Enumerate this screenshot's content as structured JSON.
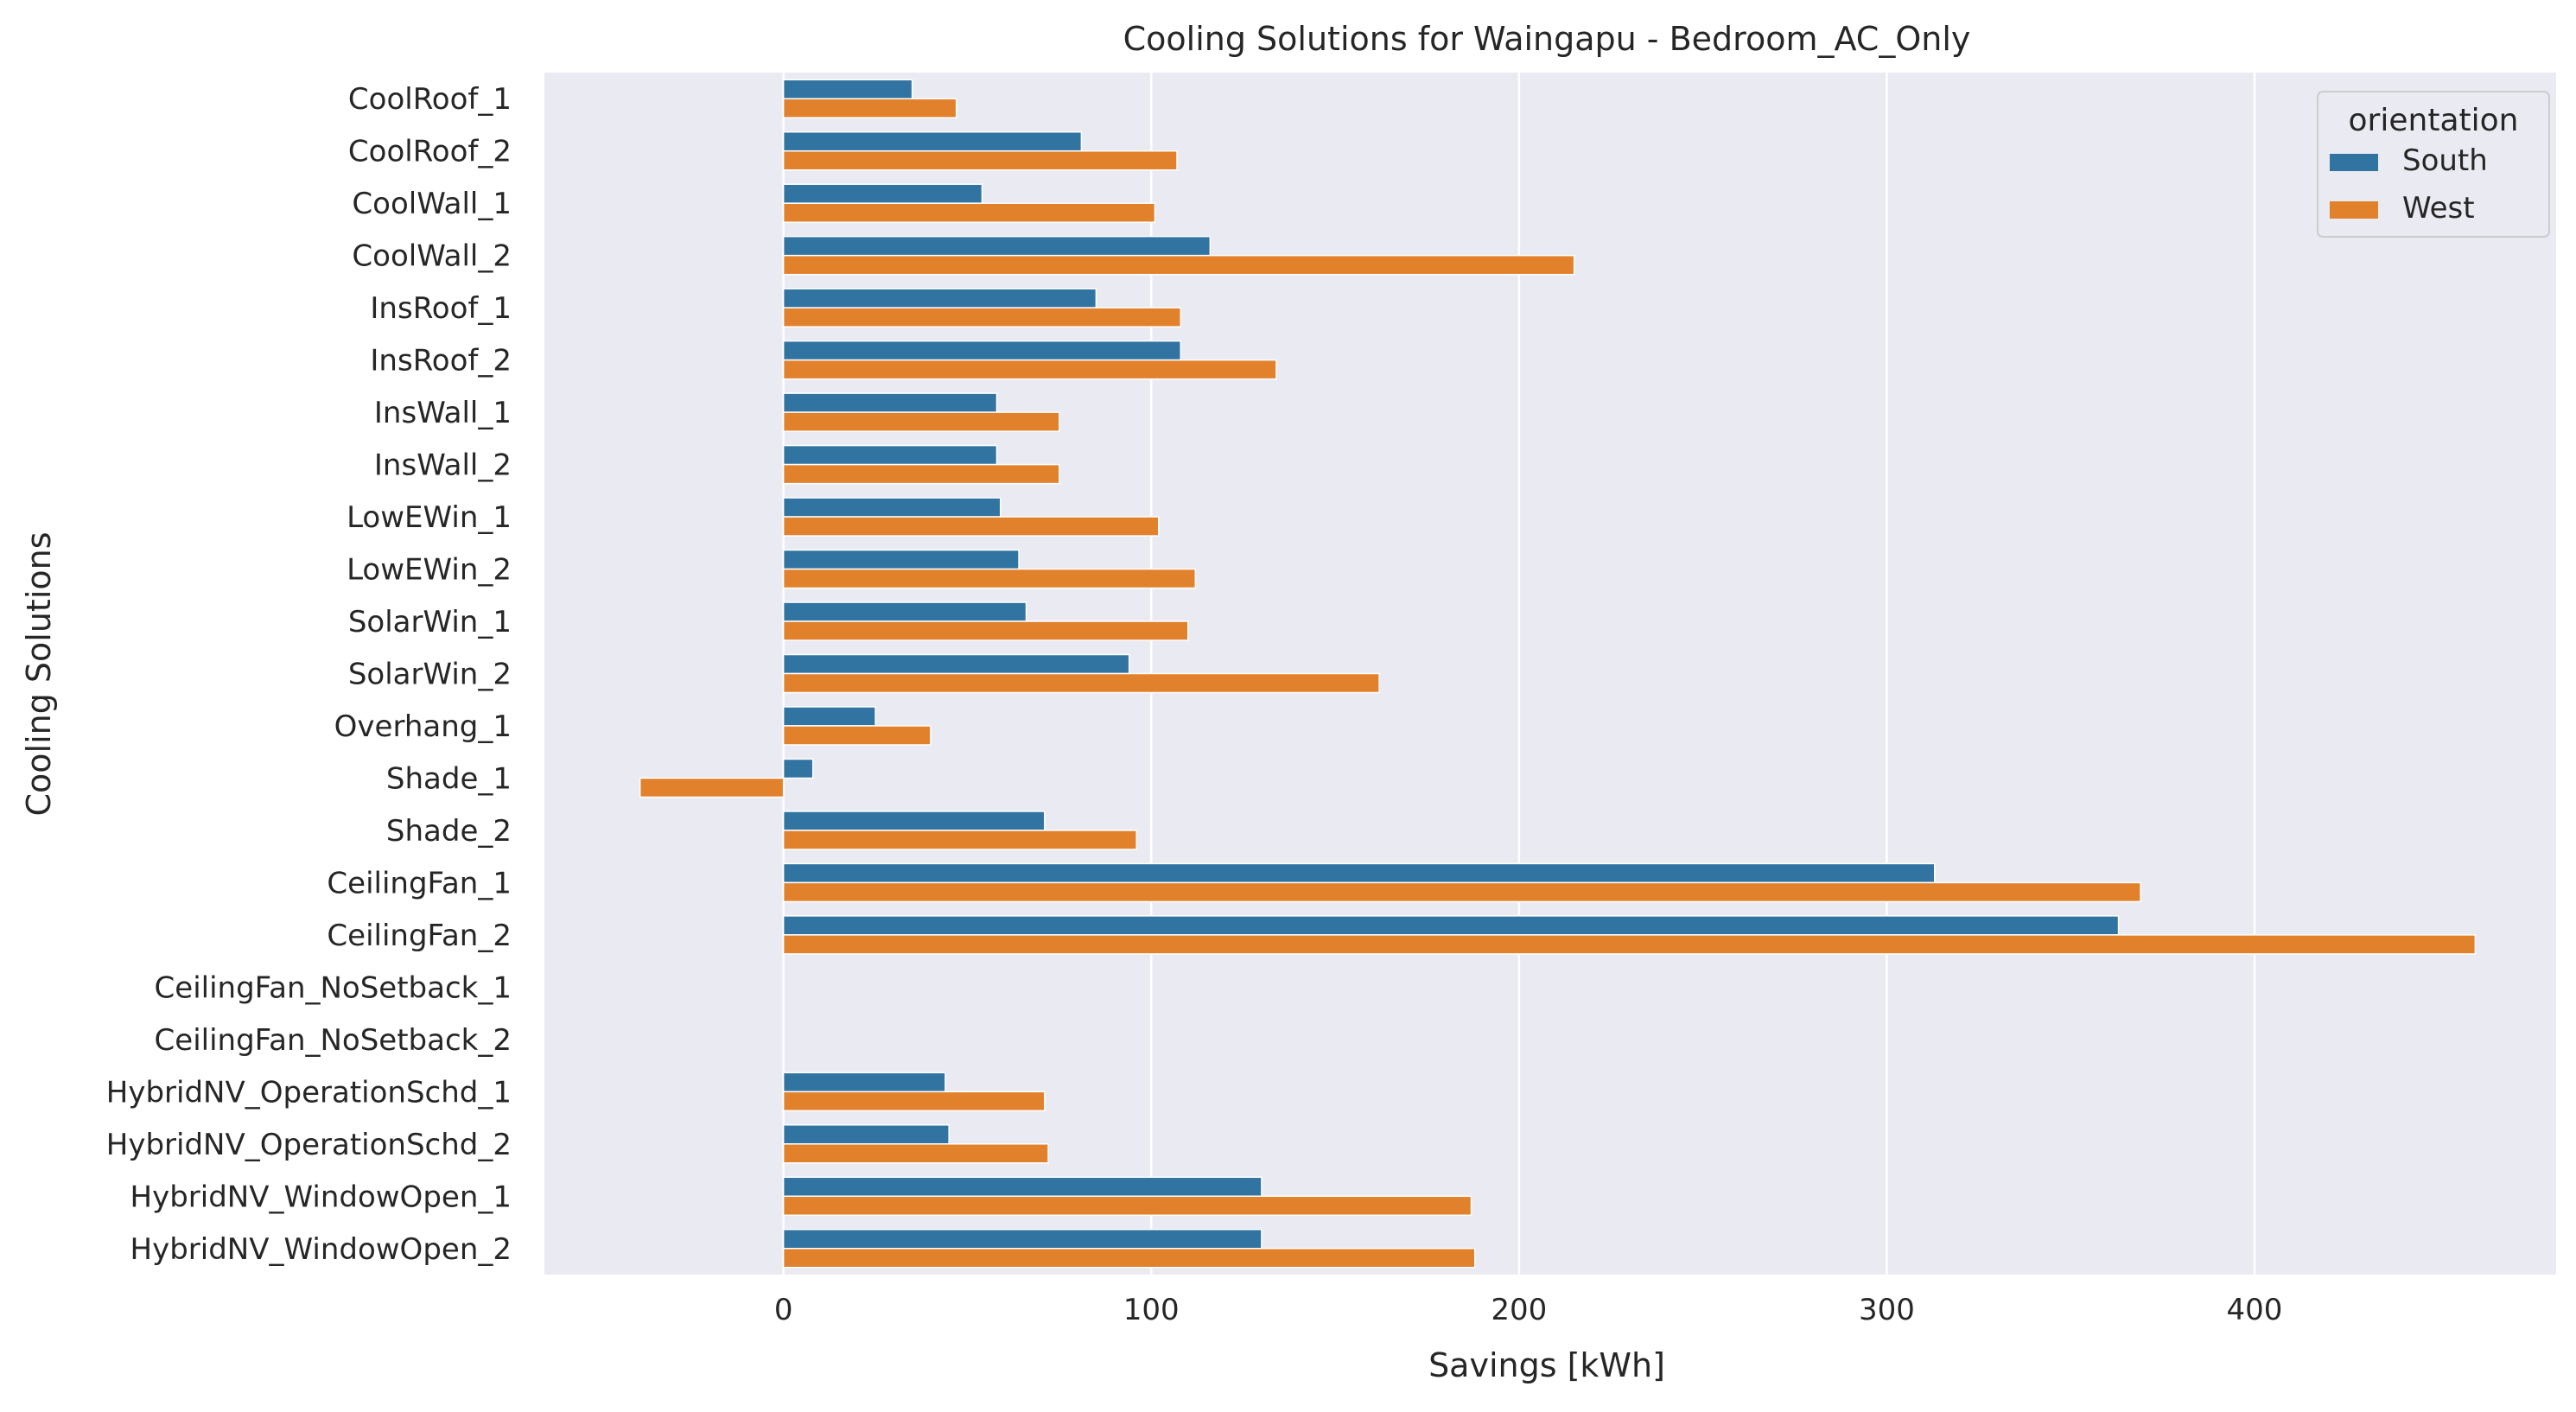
{
  "chart_data": {
    "type": "bar",
    "orientation": "horizontal",
    "title": "Cooling Solutions for Waingapu - Bedroom_AC_Only",
    "xlabel": "Savings [kWh]",
    "ylabel": "Cooling Solutions",
    "xlim": [
      -65,
      482
    ],
    "xticks": [
      0,
      100,
      200,
      300,
      400
    ],
    "grid": true,
    "legend": {
      "title": "orientation",
      "placement": "top-right"
    },
    "categories": [
      "CoolRoof_1",
      "CoolRoof_2",
      "CoolWall_1",
      "CoolWall_2",
      "InsRoof_1",
      "InsRoof_2",
      "InsWall_1",
      "InsWall_2",
      "LowEWin_1",
      "LowEWin_2",
      "SolarWin_1",
      "SolarWin_2",
      "Overhang_1",
      "Shade_1",
      "Shade_2",
      "CeilingFan_1",
      "CeilingFan_2",
      "CeilingFan_NoSetback_1",
      "CeilingFan_NoSetback_2",
      "HybridNV_OperationSchd_1",
      "HybridNV_OperationSchd_2",
      "HybridNV_WindowOpen_1",
      "HybridNV_WindowOpen_2"
    ],
    "series": [
      {
        "name": "South",
        "color": "#3274a1",
        "values": [
          35,
          81,
          54,
          116,
          85,
          108,
          58,
          58,
          59,
          64,
          66,
          94,
          25,
          8,
          71,
          313,
          363,
          null,
          null,
          44,
          45,
          130,
          130
        ]
      },
      {
        "name": "West",
        "color": "#e1812c",
        "values": [
          47,
          107,
          101,
          215,
          108,
          134,
          75,
          75,
          102,
          112,
          110,
          162,
          40,
          -39,
          96,
          369,
          460,
          null,
          null,
          71,
          72,
          187,
          188
        ]
      }
    ]
  }
}
